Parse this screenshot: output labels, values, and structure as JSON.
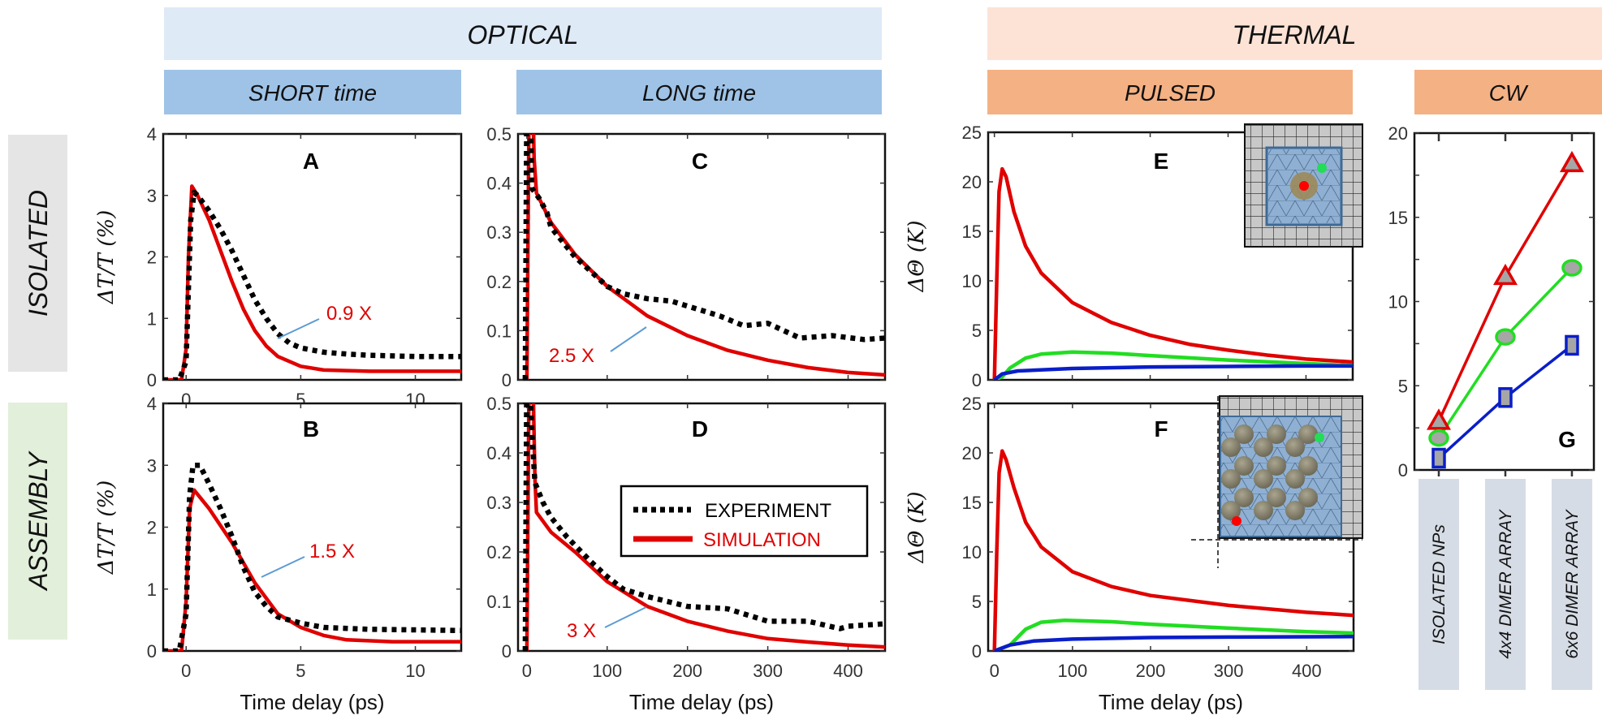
{
  "headers": {
    "optical": "OPTICAL",
    "thermal": "THERMAL",
    "short": "SHORT time",
    "long": "LONG time",
    "pulsed": "PULSED",
    "cw": "CW"
  },
  "rows": {
    "isolated": "ISOLATED",
    "assembly": "ASSEMBLY"
  },
  "legend": {
    "experiment": "EXPERIMENT",
    "simulation": "SIMULATION"
  },
  "colors": {
    "optical_header": "#dfeaf7",
    "optical_sub": "#9fc3e7",
    "thermal_header": "#fce3d6",
    "thermal_sub": "#f4b183",
    "isolated_row": "#e6e5e6",
    "assembly_row": "#e2efda",
    "category_box": "#d6dce5",
    "simulation": "#e00000",
    "experiment": "#000000",
    "red": "#e00000",
    "green": "#22dd22",
    "blue": "#0a1ec8",
    "pointer": "#5b9bd5"
  },
  "chart_data": [
    {
      "panel": "A",
      "type": "line",
      "xlabel": "",
      "ylabel": "ΔT/T (%)",
      "xlim": [
        -1,
        12
      ],
      "ylim": [
        0,
        4
      ],
      "xticks": [
        "0",
        "5",
        "10"
      ],
      "xtick_values": [
        0,
        5,
        10
      ],
      "yticks": [
        "0",
        "1",
        "2",
        "3",
        "4"
      ],
      "ytick_values": [
        0,
        1,
        2,
        3,
        4
      ],
      "annotation": "0.9 X",
      "series": [
        {
          "name": "EXPERIMENT",
          "style": "dotted",
          "color": "#000000",
          "x": [
            -1,
            -0.3,
            0,
            0.1,
            0.2,
            0.35,
            0.5,
            1,
            1.5,
            2,
            2.5,
            3,
            3.5,
            4,
            4.5,
            5,
            6,
            7,
            8,
            10,
            12
          ],
          "y": [
            0,
            0,
            0.3,
            1.5,
            2.6,
            3.05,
            3.0,
            2.75,
            2.45,
            2.1,
            1.7,
            1.3,
            1.0,
            0.75,
            0.6,
            0.52,
            0.45,
            0.42,
            0.4,
            0.38,
            0.38
          ]
        },
        {
          "name": "SIMULATION",
          "style": "solid",
          "color": "#e00000",
          "x": [
            -1,
            -0.2,
            0,
            0.1,
            0.25,
            0.5,
            1,
            1.5,
            2,
            2.5,
            3,
            3.5,
            4,
            5,
            6,
            8,
            12
          ],
          "y": [
            0,
            0,
            0.5,
            2.0,
            3.15,
            3.0,
            2.6,
            2.1,
            1.6,
            1.15,
            0.8,
            0.55,
            0.38,
            0.22,
            0.16,
            0.14,
            0.14
          ]
        }
      ]
    },
    {
      "panel": "B",
      "type": "line",
      "xlabel": "Time delay (ps)",
      "ylabel": "ΔT/T (%)",
      "xlim": [
        -1,
        12
      ],
      "ylim": [
        0,
        4
      ],
      "xticks": [
        "0",
        "5",
        "10"
      ],
      "xtick_values": [
        0,
        5,
        10
      ],
      "yticks": [
        "0",
        "1",
        "2",
        "3",
        "4"
      ],
      "ytick_values": [
        0,
        1,
        2,
        3,
        4
      ],
      "annotation": "1.5 X",
      "series": [
        {
          "name": "EXPERIMENT",
          "style": "dotted",
          "color": "#000000",
          "x": [
            -1,
            -0.3,
            0,
            0.15,
            0.3,
            0.6,
            1,
            1.5,
            2,
            2.5,
            3,
            3.5,
            4,
            5,
            6,
            8,
            12
          ],
          "y": [
            0,
            0,
            0.6,
            2.5,
            3.0,
            3.0,
            2.7,
            2.3,
            1.85,
            1.35,
            0.95,
            0.72,
            0.55,
            0.45,
            0.38,
            0.35,
            0.33
          ]
        },
        {
          "name": "SIMULATION",
          "style": "solid",
          "color": "#e00000",
          "x": [
            -1,
            -0.2,
            0,
            0.15,
            0.35,
            1,
            2,
            3,
            4,
            5,
            6,
            7,
            9,
            12
          ],
          "y": [
            0,
            0,
            0.8,
            2.3,
            2.6,
            2.3,
            1.75,
            1.1,
            0.6,
            0.38,
            0.25,
            0.18,
            0.15,
            0.15
          ]
        }
      ]
    },
    {
      "panel": "C",
      "type": "line",
      "xlabel": "",
      "ylabel": "",
      "xlim": [
        -11,
        446
      ],
      "ylim": [
        0,
        0.5
      ],
      "xticks": [],
      "xtick_values": [
        0,
        100,
        200,
        300,
        400
      ],
      "yticks": [
        "0",
        "0.1",
        "0.2",
        "0.3",
        "0.4",
        "0.5"
      ],
      "ytick_values": [
        0,
        0.1,
        0.2,
        0.3,
        0.4,
        0.5
      ],
      "annotation": "2.5 X",
      "series": [
        {
          "name": "EXPERIMENT",
          "style": "dotted",
          "color": "#000000",
          "x": [
            -2,
            0,
            2,
            5,
            6,
            15,
            25,
            30,
            40,
            60,
            80,
            100,
            120,
            150,
            180,
            210,
            240,
            270,
            300,
            320,
            340,
            380,
            420,
            446
          ],
          "y": [
            0,
            0.6,
            0.6,
            0.5,
            0.39,
            0.37,
            0.34,
            0.31,
            0.29,
            0.25,
            0.22,
            0.19,
            0.175,
            0.165,
            0.16,
            0.145,
            0.13,
            0.11,
            0.115,
            0.1,
            0.085,
            0.09,
            0.082,
            0.085
          ]
        },
        {
          "name": "SIMULATION",
          "style": "solid",
          "color": "#e00000",
          "x": [
            0,
            3,
            7,
            9,
            12,
            30,
            60,
            100,
            150,
            200,
            250,
            300,
            350,
            400,
            446
          ],
          "y": [
            0,
            0.6,
            0.6,
            0.45,
            0.38,
            0.32,
            0.255,
            0.19,
            0.13,
            0.09,
            0.06,
            0.04,
            0.025,
            0.015,
            0.01
          ]
        }
      ]
    },
    {
      "panel": "D",
      "type": "line",
      "xlabel": "Time delay (ps)",
      "ylabel": "",
      "xlim": [
        -11,
        446
      ],
      "ylim": [
        0,
        0.5
      ],
      "xticks": [
        "0",
        "100",
        "200",
        "300",
        "400"
      ],
      "xtick_values": [
        0,
        100,
        200,
        300,
        400
      ],
      "yticks": [
        "0",
        "0.1",
        "0.2",
        "0.3",
        "0.4",
        "0.5"
      ],
      "ytick_values": [
        0,
        0.1,
        0.2,
        0.3,
        0.4,
        0.5
      ],
      "annotation": "3 X",
      "series": [
        {
          "name": "EXPERIMENT",
          "style": "dotted",
          "color": "#000000",
          "x": [
            -2,
            0,
            2,
            6,
            10,
            20,
            30,
            50,
            80,
            100,
            120,
            150,
            200,
            250,
            300,
            350,
            390,
            400,
            446
          ],
          "y": [
            0,
            0.6,
            0.6,
            0.45,
            0.34,
            0.3,
            0.27,
            0.23,
            0.18,
            0.15,
            0.125,
            0.11,
            0.09,
            0.085,
            0.06,
            0.06,
            0.045,
            0.05,
            0.055
          ]
        },
        {
          "name": "SIMULATION",
          "style": "solid",
          "color": "#e00000",
          "x": [
            0,
            3,
            7,
            10,
            12,
            30,
            60,
            100,
            150,
            200,
            250,
            300,
            350,
            400,
            446
          ],
          "y": [
            0,
            0.6,
            0.6,
            0.35,
            0.28,
            0.24,
            0.2,
            0.14,
            0.09,
            0.06,
            0.04,
            0.025,
            0.018,
            0.012,
            0.008
          ]
        }
      ]
    },
    {
      "panel": "E",
      "type": "line",
      "xlabel": "",
      "ylabel": "ΔΘ (K)",
      "xlim": [
        -8,
        460
      ],
      "ylim": [
        0,
        25
      ],
      "xticks": [],
      "xtick_values": [
        0,
        100,
        200,
        300,
        400
      ],
      "yticks": [
        "0",
        "5",
        "10",
        "15",
        "20",
        "25"
      ],
      "ytick_values": [
        0,
        5,
        10,
        15,
        20,
        25
      ],
      "annotation": "",
      "series": [
        {
          "style": "solid",
          "color": "#e00000",
          "x": [
            0,
            3,
            6,
            10,
            15,
            25,
            40,
            60,
            100,
            150,
            200,
            250,
            300,
            350,
            400,
            460
          ],
          "y": [
            0,
            10,
            19,
            21.3,
            20.5,
            17,
            13.5,
            10.8,
            7.8,
            5.8,
            4.5,
            3.6,
            3.0,
            2.5,
            2.1,
            1.8
          ]
        },
        {
          "style": "solid",
          "color": "#22dd22",
          "x": [
            0,
            10,
            20,
            40,
            60,
            100,
            150,
            200,
            300,
            400,
            460
          ],
          "y": [
            0,
            0.3,
            1.2,
            2.2,
            2.6,
            2.8,
            2.7,
            2.45,
            2.0,
            1.65,
            1.45
          ]
        },
        {
          "style": "solid",
          "color": "#0a1ec8",
          "x": [
            0,
            10,
            30,
            100,
            200,
            300,
            400,
            460
          ],
          "y": [
            0,
            0.6,
            0.9,
            1.15,
            1.3,
            1.35,
            1.4,
            1.4
          ]
        }
      ]
    },
    {
      "panel": "F",
      "type": "line",
      "xlabel": "Time delay (ps)",
      "ylabel": "ΔΘ (K)",
      "xlim": [
        -8,
        460
      ],
      "ylim": [
        0,
        25
      ],
      "xticks": [
        "0",
        "100",
        "200",
        "300",
        "400"
      ],
      "xtick_values": [
        0,
        100,
        200,
        300,
        400
      ],
      "yticks": [
        "0",
        "5",
        "10",
        "15",
        "20",
        "25"
      ],
      "ytick_values": [
        0,
        5,
        10,
        15,
        20,
        25
      ],
      "annotation": "",
      "series": [
        {
          "style": "solid",
          "color": "#e00000",
          "x": [
            0,
            3,
            6,
            10,
            15,
            25,
            40,
            60,
            100,
            150,
            200,
            300,
            400,
            460
          ],
          "y": [
            0,
            10,
            18,
            20.2,
            19.3,
            16.5,
            13,
            10.5,
            8,
            6.5,
            5.6,
            4.6,
            3.9,
            3.6
          ]
        },
        {
          "style": "solid",
          "color": "#22dd22",
          "x": [
            0,
            20,
            40,
            60,
            90,
            150,
            200,
            300,
            400,
            460
          ],
          "y": [
            0,
            0.6,
            2.2,
            2.9,
            3.1,
            2.95,
            2.7,
            2.3,
            1.95,
            1.8
          ]
        },
        {
          "style": "solid",
          "color": "#0a1ec8",
          "x": [
            0,
            20,
            50,
            100,
            200,
            300,
            460
          ],
          "y": [
            0,
            0.6,
            1.0,
            1.2,
            1.35,
            1.4,
            1.45
          ]
        }
      ]
    },
    {
      "panel": "G",
      "type": "line",
      "xlabel": "",
      "ylabel": "",
      "categories": [
        "ISOLATED NPs",
        "4x4 DIMER ARRAY",
        "6x6 DIMER ARRAY"
      ],
      "ylim": [
        0,
        20
      ],
      "yticks": [
        "0",
        "5",
        "10",
        "15",
        "20"
      ],
      "ytick_values": [
        0,
        5,
        10,
        15,
        20
      ],
      "series": [
        {
          "color": "#e00000",
          "marker": "triangle",
          "values": [
            2.9,
            11.5,
            18.2
          ]
        },
        {
          "color": "#22dd22",
          "marker": "circle",
          "values": [
            1.9,
            7.9,
            12.0
          ]
        },
        {
          "color": "#0a1ec8",
          "marker": "square",
          "values": [
            0.7,
            4.3,
            7.4
          ]
        }
      ]
    }
  ]
}
